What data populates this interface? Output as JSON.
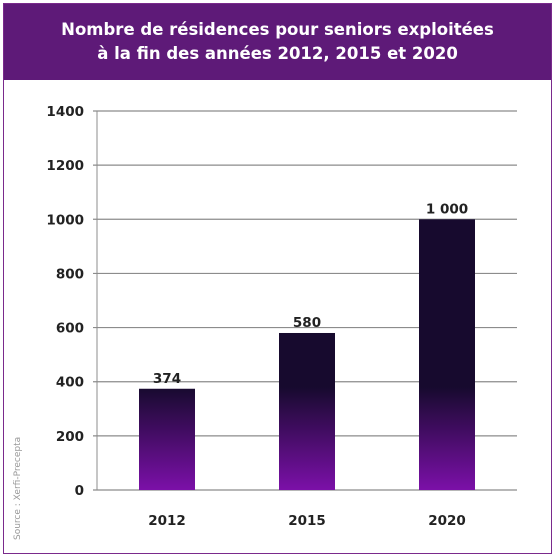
{
  "header": {
    "title_line1": "Nombre de résidences pour seniors exploitées",
    "title_line2": "à la fin des années 2012, 2015 et 2020"
  },
  "source": "Source : Xerfi-Precepta",
  "colors": {
    "header_bg": "#5e1a78",
    "bar_top": "#170a2e",
    "bar_bottom": "#7b10a8",
    "gridline": "#8c8c8c"
  },
  "chart_data": {
    "type": "bar",
    "categories": [
      "2012",
      "2015",
      "2020"
    ],
    "values": [
      374,
      580,
      1000
    ],
    "data_labels": [
      "374",
      "580",
      "1 000"
    ],
    "ylim": [
      0,
      1400
    ],
    "yticks": [
      0,
      200,
      400,
      600,
      800,
      1000,
      1200,
      1400
    ],
    "grid": true
  }
}
